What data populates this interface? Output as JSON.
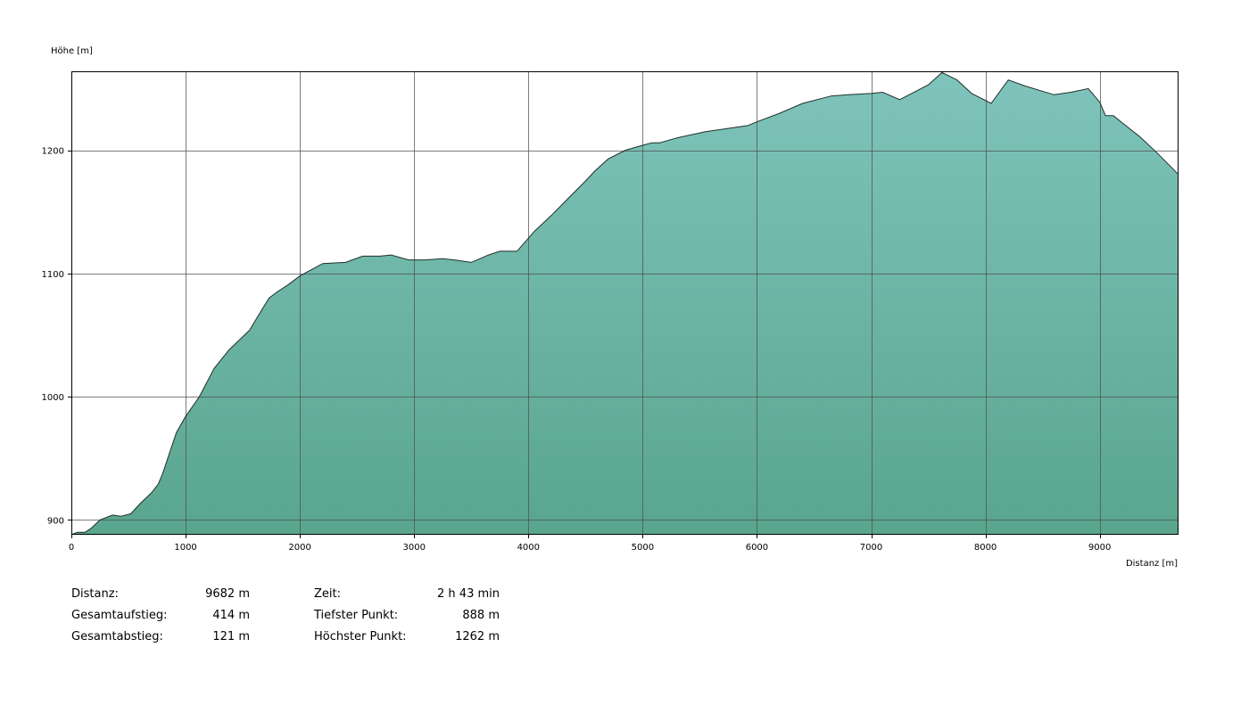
{
  "colors": {
    "fill_top": "#7fc4bc",
    "fill_bottom": "#59a58d",
    "outline": "#1f2f2a",
    "grid": "#505050",
    "frame": "#000000"
  },
  "chart_data": {
    "type": "area",
    "ylabel": "Höhe [m]",
    "xlabel": "Distanz [m]",
    "xlim": [
      0,
      9682
    ],
    "ylim": [
      888,
      1264
    ],
    "grid": true,
    "x_ticks": [
      0,
      1000,
      2000,
      3000,
      4000,
      5000,
      6000,
      7000,
      8000,
      9000
    ],
    "y_ticks": [
      900,
      1000,
      1100,
      1200
    ],
    "series": [
      {
        "x": [
          0,
          50,
          120,
          170,
          250,
          360,
          430,
          520,
          600,
          700,
          760,
          800,
          850,
          920,
          1000,
          1120,
          1250,
          1380,
          1560,
          1650,
          1730,
          1800,
          1900,
          2000,
          2200,
          2400,
          2550,
          2700,
          2800,
          2950,
          3100,
          3250,
          3350,
          3500,
          3650,
          3750,
          3900,
          4050,
          4200,
          4350,
          4500,
          4580,
          4700,
          4850,
          5000,
          5080,
          5150,
          5300,
          5550,
          5700,
          5920,
          6000,
          6200,
          6400,
          6650,
          6800,
          7000,
          7100,
          7250,
          7500,
          7620,
          7750,
          7880,
          8050,
          8200,
          8350,
          8600,
          8750,
          8900,
          9000,
          9050,
          9120,
          9200,
          9350,
          9500,
          9682
        ],
        "y": [
          888,
          890,
          890,
          893,
          900,
          904,
          903,
          905,
          913,
          922,
          929,
          938,
          952,
          971,
          984,
          1000,
          1023,
          1038,
          1054,
          1068,
          1080,
          1085,
          1091,
          1098,
          1108,
          1109,
          1114,
          1114,
          1115,
          1111,
          1111,
          1112,
          1111,
          1109,
          1115,
          1118,
          1118,
          1134,
          1147,
          1161,
          1175,
          1183,
          1193,
          1200,
          1204,
          1206,
          1206,
          1210,
          1215,
          1217,
          1220,
          1223,
          1230,
          1238,
          1244,
          1245,
          1246,
          1247,
          1241,
          1253,
          1263,
          1257,
          1246,
          1238,
          1257,
          1252,
          1245,
          1247,
          1250,
          1239,
          1228,
          1228,
          1222,
          1211,
          1198,
          1181
        ]
      }
    ]
  },
  "stats": [
    {
      "label": "Distanz:",
      "value": "9682 m"
    },
    {
      "label": "Gesamtaufstieg:",
      "value": "414 m"
    },
    {
      "label": "Gesamtabstieg:",
      "value": "121 m"
    },
    {
      "label": "Zeit:",
      "value": "2 h 43 min"
    },
    {
      "label": "Tiefster Punkt:",
      "value": "888 m"
    },
    {
      "label": "Höchster Punkt:",
      "value": "1262 m"
    }
  ]
}
